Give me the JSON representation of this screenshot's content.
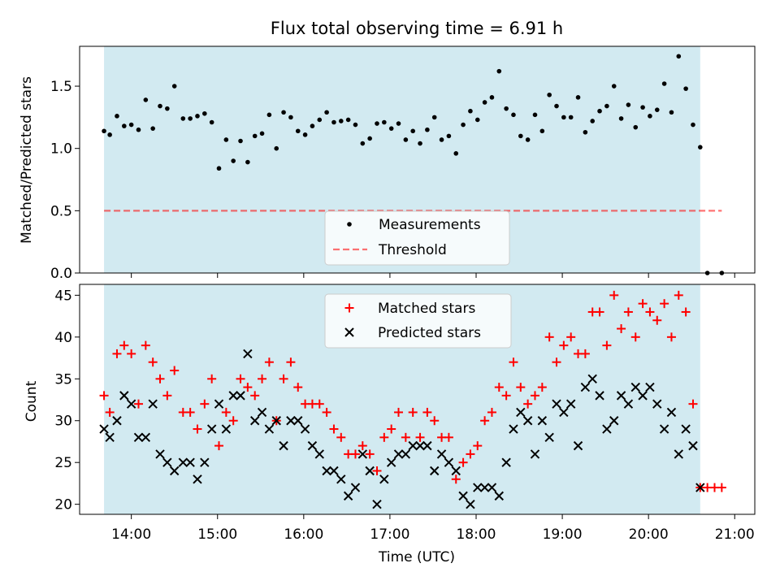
{
  "colors": {
    "observing_band": "#add8e6",
    "measurement": "#000000",
    "threshold": "#ff0000",
    "matched": "#ff0000",
    "predicted": "#000000"
  },
  "chart_data": [
    {
      "type": "scatter",
      "title": "Flux total observing time = 6.91 h",
      "xlabel": "",
      "ylabel": "Matched/Predicted stars",
      "xlim": [
        "13:24",
        "21:14"
      ],
      "ylim": [
        0,
        1.82
      ],
      "yticks": [
        "0.0",
        "0.5",
        "1.0",
        "1.5"
      ],
      "grid": false,
      "observing_window": [
        "13:41",
        "20:36"
      ],
      "legend": {
        "placement": "lower-center",
        "entries": [
          "Measurements",
          "Threshold"
        ]
      },
      "threshold": {
        "name": "Threshold",
        "value": 0.5,
        "x_range": [
          "13:41",
          "20:51"
        ]
      },
      "series": [
        {
          "name": "Measurements",
          "marker": "dot",
          "points": [
            [
              "13:41",
              1.14
            ],
            [
              "13:45",
              1.11
            ],
            [
              "13:50",
              1.26
            ],
            [
              "13:55",
              1.18
            ],
            [
              "14:00",
              1.19
            ],
            [
              "14:05",
              1.15
            ],
            [
              "14:10",
              1.39
            ],
            [
              "14:15",
              1.16
            ],
            [
              "14:20",
              1.34
            ],
            [
              "14:25",
              1.32
            ],
            [
              "14:30",
              1.5
            ],
            [
              "14:36",
              1.24
            ],
            [
              "14:41",
              1.24
            ],
            [
              "14:46",
              1.26
            ],
            [
              "14:51",
              1.28
            ],
            [
              "14:56",
              1.21
            ],
            [
              "15:01",
              0.84
            ],
            [
              "15:06",
              1.07
            ],
            [
              "15:11",
              0.9
            ],
            [
              "15:16",
              1.06
            ],
            [
              "15:21",
              0.89
            ],
            [
              "15:26",
              1.1
            ],
            [
              "15:31",
              1.12
            ],
            [
              "15:36",
              1.27
            ],
            [
              "15:41",
              1.0
            ],
            [
              "15:46",
              1.29
            ],
            [
              "15:51",
              1.25
            ],
            [
              "15:56",
              1.14
            ],
            [
              "16:01",
              1.11
            ],
            [
              "16:06",
              1.18
            ],
            [
              "16:11",
              1.23
            ],
            [
              "16:16",
              1.29
            ],
            [
              "16:21",
              1.21
            ],
            [
              "16:26",
              1.22
            ],
            [
              "16:31",
              1.23
            ],
            [
              "16:36",
              1.19
            ],
            [
              "16:41",
              1.04
            ],
            [
              "16:46",
              1.08
            ],
            [
              "16:51",
              1.2
            ],
            [
              "16:56",
              1.21
            ],
            [
              "17:01",
              1.16
            ],
            [
              "17:06",
              1.2
            ],
            [
              "17:11",
              1.07
            ],
            [
              "17:16",
              1.14
            ],
            [
              "17:21",
              1.04
            ],
            [
              "17:26",
              1.15
            ],
            [
              "17:31",
              1.25
            ],
            [
              "17:36",
              1.07
            ],
            [
              "17:41",
              1.1
            ],
            [
              "17:46",
              0.96
            ],
            [
              "17:51",
              1.19
            ],
            [
              "17:56",
              1.3
            ],
            [
              "18:01",
              1.23
            ],
            [
              "18:06",
              1.37
            ],
            [
              "18:11",
              1.41
            ],
            [
              "18:16",
              1.62
            ],
            [
              "18:21",
              1.32
            ],
            [
              "18:26",
              1.27
            ],
            [
              "18:31",
              1.1
            ],
            [
              "18:36",
              1.07
            ],
            [
              "18:41",
              1.27
            ],
            [
              "18:46",
              1.14
            ],
            [
              "18:51",
              1.43
            ],
            [
              "18:56",
              1.34
            ],
            [
              "19:01",
              1.25
            ],
            [
              "19:06",
              1.25
            ],
            [
              "19:11",
              1.41
            ],
            [
              "19:16",
              1.13
            ],
            [
              "19:21",
              1.22
            ],
            [
              "19:26",
              1.3
            ],
            [
              "19:31",
              1.34
            ],
            [
              "19:36",
              1.5
            ],
            [
              "19:41",
              1.24
            ],
            [
              "19:46",
              1.35
            ],
            [
              "19:51",
              1.17
            ],
            [
              "19:56",
              1.33
            ],
            [
              "20:01",
              1.26
            ],
            [
              "20:06",
              1.31
            ],
            [
              "20:11",
              1.52
            ],
            [
              "20:16",
              1.29
            ],
            [
              "20:21",
              1.74
            ],
            [
              "20:26",
              1.48
            ],
            [
              "20:31",
              1.19
            ],
            [
              "20:36",
              1.01
            ],
            [
              "20:41",
              0.0
            ],
            [
              "20:51",
              0.0
            ]
          ]
        }
      ]
    },
    {
      "type": "scatter",
      "title": "",
      "xlabel": "Time (UTC)",
      "ylabel": "Count",
      "xlim": [
        "13:24",
        "21:14"
      ],
      "ylim": [
        18.8,
        46.3
      ],
      "yticks": [
        "20",
        "25",
        "30",
        "35",
        "40",
        "45"
      ],
      "xticks": [
        "14:00",
        "15:00",
        "16:00",
        "17:00",
        "18:00",
        "19:00",
        "20:00",
        "21:00"
      ],
      "grid": false,
      "observing_window": [
        "13:41",
        "20:36"
      ],
      "legend": {
        "placement": "upper-center",
        "entries": [
          "Matched stars",
          "Predicted stars"
        ]
      },
      "series": [
        {
          "name": "Matched stars",
          "marker": "plus",
          "points": [
            [
              "13:41",
              33
            ],
            [
              "13:45",
              31
            ],
            [
              "13:50",
              38
            ],
            [
              "13:55",
              39
            ],
            [
              "14:00",
              38
            ],
            [
              "14:05",
              32
            ],
            [
              "14:10",
              39
            ],
            [
              "14:15",
              37
            ],
            [
              "14:20",
              35
            ],
            [
              "14:25",
              33
            ],
            [
              "14:30",
              36
            ],
            [
              "14:36",
              31
            ],
            [
              "14:41",
              31
            ],
            [
              "14:46",
              29
            ],
            [
              "14:51",
              32
            ],
            [
              "14:56",
              35
            ],
            [
              "15:01",
              27
            ],
            [
              "15:06",
              31
            ],
            [
              "15:11",
              30
            ],
            [
              "15:16",
              35
            ],
            [
              "15:21",
              34
            ],
            [
              "15:26",
              33
            ],
            [
              "15:31",
              35
            ],
            [
              "15:36",
              37
            ],
            [
              "15:41",
              30
            ],
            [
              "15:46",
              35
            ],
            [
              "15:51",
              37
            ],
            [
              "15:56",
              34
            ],
            [
              "16:01",
              32
            ],
            [
              "16:06",
              32
            ],
            [
              "16:11",
              32
            ],
            [
              "16:16",
              31
            ],
            [
              "16:21",
              29
            ],
            [
              "16:26",
              28
            ],
            [
              "16:31",
              26
            ],
            [
              "16:36",
              26
            ],
            [
              "16:41",
              27
            ],
            [
              "16:46",
              26
            ],
            [
              "16:51",
              24
            ],
            [
              "16:56",
              28
            ],
            [
              "17:01",
              29
            ],
            [
              "17:06",
              31
            ],
            [
              "17:11",
              28
            ],
            [
              "17:16",
              31
            ],
            [
              "17:21",
              28
            ],
            [
              "17:26",
              31
            ],
            [
              "17:31",
              30
            ],
            [
              "17:36",
              28
            ],
            [
              "17:41",
              28
            ],
            [
              "17:46",
              23
            ],
            [
              "17:51",
              25
            ],
            [
              "17:56",
              26
            ],
            [
              "18:01",
              27
            ],
            [
              "18:06",
              30
            ],
            [
              "18:11",
              31
            ],
            [
              "18:16",
              34
            ],
            [
              "18:21",
              33
            ],
            [
              "18:26",
              37
            ],
            [
              "18:31",
              34
            ],
            [
              "18:36",
              32
            ],
            [
              "18:41",
              33
            ],
            [
              "18:46",
              34
            ],
            [
              "18:51",
              40
            ],
            [
              "18:56",
              37
            ],
            [
              "19:01",
              39
            ],
            [
              "19:06",
              40
            ],
            [
              "19:11",
              38
            ],
            [
              "19:16",
              38
            ],
            [
              "19:21",
              43
            ],
            [
              "19:26",
              43
            ],
            [
              "19:31",
              39
            ],
            [
              "19:36",
              45
            ],
            [
              "19:41",
              41
            ],
            [
              "19:46",
              43
            ],
            [
              "19:51",
              40
            ],
            [
              "19:56",
              44
            ],
            [
              "20:01",
              43
            ],
            [
              "20:06",
              42
            ],
            [
              "20:11",
              44
            ],
            [
              "20:16",
              40
            ],
            [
              "20:21",
              45
            ],
            [
              "20:26",
              43
            ],
            [
              "20:31",
              32
            ],
            [
              "20:36",
              22
            ],
            [
              "20:41",
              22
            ],
            [
              "20:46",
              22
            ],
            [
              "20:51",
              22
            ]
          ]
        },
        {
          "name": "Predicted stars",
          "marker": "x",
          "points": [
            [
              "13:41",
              29
            ],
            [
              "13:45",
              28
            ],
            [
              "13:50",
              30
            ],
            [
              "13:55",
              33
            ],
            [
              "14:00",
              32
            ],
            [
              "14:05",
              28
            ],
            [
              "14:10",
              28
            ],
            [
              "14:15",
              32
            ],
            [
              "14:20",
              26
            ],
            [
              "14:25",
              25
            ],
            [
              "14:30",
              24
            ],
            [
              "14:36",
              25
            ],
            [
              "14:41",
              25
            ],
            [
              "14:46",
              23
            ],
            [
              "14:51",
              25
            ],
            [
              "14:56",
              29
            ],
            [
              "15:01",
              32
            ],
            [
              "15:06",
              29
            ],
            [
              "15:11",
              33
            ],
            [
              "15:16",
              33
            ],
            [
              "15:21",
              38
            ],
            [
              "15:26",
              30
            ],
            [
              "15:31",
              31
            ],
            [
              "15:36",
              29
            ],
            [
              "15:41",
              30
            ],
            [
              "15:46",
              27
            ],
            [
              "15:51",
              30
            ],
            [
              "15:56",
              30
            ],
            [
              "16:01",
              29
            ],
            [
              "16:06",
              27
            ],
            [
              "16:11",
              26
            ],
            [
              "16:16",
              24
            ],
            [
              "16:21",
              24
            ],
            [
              "16:26",
              23
            ],
            [
              "16:31",
              21
            ],
            [
              "16:36",
              22
            ],
            [
              "16:41",
              26
            ],
            [
              "16:46",
              24
            ],
            [
              "16:51",
              20
            ],
            [
              "16:56",
              23
            ],
            [
              "17:01",
              25
            ],
            [
              "17:06",
              26
            ],
            [
              "17:11",
              26
            ],
            [
              "17:16",
              27
            ],
            [
              "17:21",
              27
            ],
            [
              "17:26",
              27
            ],
            [
              "17:31",
              24
            ],
            [
              "17:36",
              26
            ],
            [
              "17:41",
              25
            ],
            [
              "17:46",
              24
            ],
            [
              "17:51",
              21
            ],
            [
              "17:56",
              20
            ],
            [
              "18:01",
              22
            ],
            [
              "18:06",
              22
            ],
            [
              "18:11",
              22
            ],
            [
              "18:16",
              21
            ],
            [
              "18:21",
              25
            ],
            [
              "18:26",
              29
            ],
            [
              "18:31",
              31
            ],
            [
              "18:36",
              30
            ],
            [
              "18:41",
              26
            ],
            [
              "18:46",
              30
            ],
            [
              "18:51",
              28
            ],
            [
              "18:56",
              32
            ],
            [
              "19:01",
              31
            ],
            [
              "19:06",
              32
            ],
            [
              "19:11",
              27
            ],
            [
              "19:16",
              34
            ],
            [
              "19:21",
              35
            ],
            [
              "19:26",
              33
            ],
            [
              "19:31",
              29
            ],
            [
              "19:36",
              30
            ],
            [
              "19:41",
              33
            ],
            [
              "19:46",
              32
            ],
            [
              "19:51",
              34
            ],
            [
              "19:56",
              33
            ],
            [
              "20:01",
              34
            ],
            [
              "20:06",
              32
            ],
            [
              "20:11",
              29
            ],
            [
              "20:16",
              31
            ],
            [
              "20:21",
              26
            ],
            [
              "20:26",
              29
            ],
            [
              "20:31",
              27
            ],
            [
              "20:36",
              22
            ]
          ]
        }
      ]
    }
  ]
}
